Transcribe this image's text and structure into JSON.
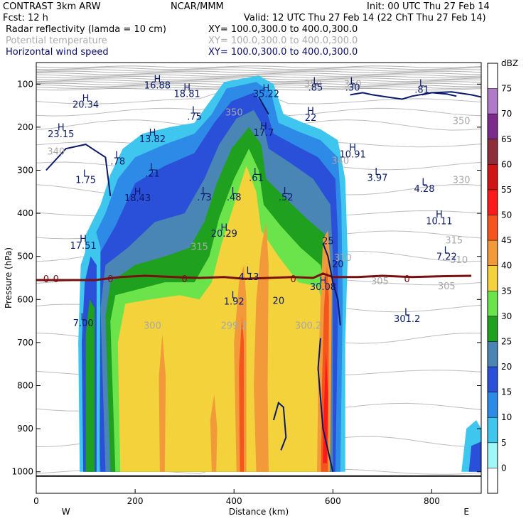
{
  "header": {
    "line1_left": "CONTRAST  3km ARW",
    "line1_center": "NCAR/MMM",
    "line1_right": "Init: 00 UTC Thu 27 Feb 14",
    "line2_left": "Fcst:     12 h",
    "line2_right": "Valid: 12 UTC Thu 27 Feb 14 (22 ChT Thu 27 Feb 14)",
    "field1": "Radar reflectivity (lamda = 10 cm)",
    "field1_xy": "XY= 100.0,300.0 to 400.0,300.0",
    "field2": "Potential temperature",
    "field2_xy": "XY= 100.0,300.0 to 400.0,300.0",
    "field3": "Horizontal wind speed",
    "field3_xy": "XY= 100.0,300.0 to 400.0,300.0"
  },
  "chart_data": {
    "type": "cross-section",
    "xlabel": "Distance (km)",
    "ylabel": "Pressure (hPa)",
    "x_ticks": [
      "0",
      "200",
      "400",
      "600",
      "800"
    ],
    "x_tick_values": [
      0,
      200,
      400,
      600,
      800
    ],
    "y_ticks": [
      "100",
      "200",
      "300",
      "400",
      "500",
      "600",
      "700",
      "800",
      "900",
      "1000"
    ],
    "y_tick_values": [
      100,
      200,
      300,
      400,
      500,
      600,
      700,
      800,
      900,
      1000
    ],
    "xlim": [
      0,
      900
    ],
    "ylim": [
      1050,
      50
    ],
    "west_label": "W",
    "east_label": "E",
    "colorbar": {
      "unit": "dBZ",
      "labels": [
        "0",
        "5",
        "10",
        "15",
        "20",
        "25",
        "30",
        "35",
        "40",
        "45",
        "50",
        "55",
        "60",
        "65",
        "70",
        "75"
      ],
      "colors": [
        "#ffffff",
        "#9ff7f7",
        "#3fc6ee",
        "#2d8ae6",
        "#2a4fd8",
        "#4a86b5",
        "#1fa01f",
        "#6ae44a",
        "#f3d23c",
        "#f29a3a",
        "#f5551c",
        "#ff1a1a",
        "#d01515",
        "#8e2e3a",
        "#7c2a8c",
        "#b07ac8",
        "#ffffff"
      ]
    },
    "freezing_level": {
      "label": "0",
      "color": "#7a0f0f",
      "points": [
        [
          0,
          555
        ],
        [
          80,
          555
        ],
        [
          120,
          555
        ],
        [
          140,
          552
        ],
        [
          170,
          548
        ],
        [
          220,
          545
        ],
        [
          280,
          548
        ],
        [
          330,
          550
        ],
        [
          380,
          548
        ],
        [
          420,
          552
        ],
        [
          470,
          550
        ],
        [
          520,
          548
        ],
        [
          560,
          550
        ],
        [
          580,
          540
        ],
        [
          600,
          548
        ],
        [
          650,
          548
        ],
        [
          700,
          545
        ],
        [
          760,
          548
        ],
        [
          820,
          546
        ],
        [
          880,
          545
        ]
      ],
      "labels_x": [
        20,
        40,
        150,
        300,
        520,
        750
      ]
    },
    "reflectivity_columns": [
      {
        "x0": 85,
        "x1": 130,
        "top": 420,
        "tops": [
          [
            85,
            520
          ],
          [
            110,
            440
          ],
          [
            130,
            460
          ]
        ],
        "bands": [
          [
            0,
            2
          ],
          [
            1,
            1
          ]
        ]
      },
      {
        "x0": 130,
        "x1": 625,
        "outline": [
          [
            130,
            430
          ],
          [
            150,
            330
          ],
          [
            170,
            260
          ],
          [
            200,
            230
          ],
          [
            260,
            215
          ],
          [
            320,
            200
          ],
          [
            350,
            160
          ],
          [
            390,
            100
          ],
          [
            440,
            90
          ],
          [
            470,
            110
          ],
          [
            490,
            180
          ],
          [
            520,
            200
          ],
          [
            560,
            210
          ],
          [
            600,
            240
          ],
          [
            625,
            330
          ]
        ]
      }
    ],
    "annotations": [
      {
        "text": "H",
        "x": 245,
        "y": 95
      },
      {
        "text": "16.88",
        "x": 245,
        "y": 110
      },
      {
        "text": "H",
        "x": 305,
        "y": 115
      },
      {
        "text": "18.81",
        "x": 305,
        "y": 130
      },
      {
        "text": "H",
        "x": 100,
        "y": 140
      },
      {
        "text": "20.34",
        "x": 100,
        "y": 155
      },
      {
        "text": "H",
        "x": 465,
        "y": 117
      },
      {
        "text": "35.22",
        "x": 465,
        "y": 130
      },
      {
        "text": "L",
        "x": 565,
        "y": 100
      },
      {
        "text": ".85",
        "x": 565,
        "y": 115
      },
      {
        "text": "L",
        "x": 640,
        "y": 100
      },
      {
        "text": ".30",
        "x": 640,
        "y": 115
      },
      {
        "text": "L",
        "x": 780,
        "y": 105
      },
      {
        "text": ".81",
        "x": 780,
        "y": 120
      },
      {
        "text": "L",
        "x": 320,
        "y": 168
      },
      {
        "text": ".75",
        "x": 320,
        "y": 183
      },
      {
        "text": "H",
        "x": 555,
        "y": 170
      },
      {
        "text": "22",
        "x": 555,
        "y": 185
      },
      {
        "text": "H",
        "x": 50,
        "y": 208
      },
      {
        "text": "23.15",
        "x": 50,
        "y": 223
      },
      {
        "text": "H",
        "x": 235,
        "y": 220
      },
      {
        "text": "13.82",
        "x": 235,
        "y": 235
      },
      {
        "text": "H",
        "x": 460,
        "y": 205
      },
      {
        "text": "17.7",
        "x": 460,
        "y": 220
      },
      {
        "text": "H",
        "x": 640,
        "y": 255
      },
      {
        "text": "10.91",
        "x": 640,
        "y": 270
      },
      {
        "text": "L",
        "x": 165,
        "y": 272
      },
      {
        "text": ".78",
        "x": 165,
        "y": 287
      },
      {
        "text": "L",
        "x": 235,
        "y": 300
      },
      {
        "text": ".21",
        "x": 235,
        "y": 315
      },
      {
        "text": "L",
        "x": 100,
        "y": 315
      },
      {
        "text": "1.75",
        "x": 100,
        "y": 330
      },
      {
        "text": "L",
        "x": 445,
        "y": 311
      },
      {
        "text": ".61",
        "x": 445,
        "y": 325
      },
      {
        "text": "L",
        "x": 690,
        "y": 311
      },
      {
        "text": "3.97",
        "x": 690,
        "y": 325
      },
      {
        "text": "L",
        "x": 785,
        "y": 335
      },
      {
        "text": "4.28",
        "x": 785,
        "y": 350
      },
      {
        "text": "H",
        "x": 205,
        "y": 357
      },
      {
        "text": "18.43",
        "x": 205,
        "y": 372
      },
      {
        "text": "L",
        "x": 340,
        "y": 355
      },
      {
        "text": ".73",
        "x": 340,
        "y": 370
      },
      {
        "text": "L",
        "x": 400,
        "y": 355
      },
      {
        "text": ".48",
        "x": 400,
        "y": 370
      },
      {
        "text": "L",
        "x": 505,
        "y": 355
      },
      {
        "text": ".52",
        "x": 505,
        "y": 370
      },
      {
        "text": "H",
        "x": 815,
        "y": 410
      },
      {
        "text": "10.11",
        "x": 815,
        "y": 425
      },
      {
        "text": "H",
        "x": 380,
        "y": 440
      },
      {
        "text": "20.29",
        "x": 380,
        "y": 454
      },
      {
        "text": "H",
        "x": 95,
        "y": 467
      },
      {
        "text": "17.51",
        "x": 95,
        "y": 482
      },
      {
        "text": "25",
        "x": 590,
        "y": 472
      },
      {
        "text": "L",
        "x": 830,
        "y": 493
      },
      {
        "text": "7.22",
        "x": 830,
        "y": 508
      },
      {
        "text": "20",
        "x": 610,
        "y": 525
      },
      {
        "text": "L",
        "x": 430,
        "y": 540
      },
      {
        "text": "4.13",
        "x": 430,
        "y": 555
      },
      {
        "text": "H",
        "x": 580,
        "y": 563
      },
      {
        "text": "30.08",
        "x": 580,
        "y": 578
      },
      {
        "text": "20",
        "x": 490,
        "y": 610
      },
      {
        "text": "L",
        "x": 400,
        "y": 597
      },
      {
        "text": "1.92",
        "x": 400,
        "y": 612
      },
      {
        "text": "L",
        "x": 750,
        "y": 637
      },
      {
        "text": "301.2",
        "x": 750,
        "y": 652
      },
      {
        "text": "L",
        "x": 95,
        "y": 648
      },
      {
        "text": "7.00",
        "x": 95,
        "y": 662
      }
    ],
    "wind_contours": [
      {
        "label": "20",
        "points": [
          [
            635,
            125
          ],
          [
            660,
            120
          ],
          [
            680,
            125
          ],
          [
            710,
            130
          ],
          [
            740,
            135
          ],
          [
            760,
            128
          ],
          [
            800,
            120
          ],
          [
            840,
            118
          ],
          [
            880,
            125
          ],
          [
            900,
            130
          ]
        ]
      },
      {
        "label": "25",
        "points": [
          [
            780,
            125
          ],
          [
            800,
            120
          ],
          [
            830,
            123
          ],
          [
            850,
            128
          ]
        ]
      }
    ],
    "theta_labels": [
      {
        "text": "350",
        "x": 860,
        "y": 193
      },
      {
        "text": "340",
        "x": 40,
        "y": 264
      },
      {
        "text": "340",
        "x": 615,
        "y": 285
      },
      {
        "text": "330",
        "x": 860,
        "y": 330
      },
      {
        "text": "315",
        "x": 330,
        "y": 485
      },
      {
        "text": "315",
        "x": 845,
        "y": 470
      },
      {
        "text": "310",
        "x": 620,
        "y": 510
      },
      {
        "text": "310",
        "x": 855,
        "y": 515
      },
      {
        "text": "305",
        "x": 695,
        "y": 565
      },
      {
        "text": "305",
        "x": 830,
        "y": 576
      },
      {
        "text": "300",
        "x": 235,
        "y": 668
      },
      {
        "text": "299.2",
        "x": 400,
        "y": 668
      },
      {
        "text": "300.2",
        "x": 550,
        "y": 668
      },
      {
        "text": "350",
        "x": 400,
        "y": 173
      },
      {
        "text": "350",
        "x": 560,
        "y": 107
      },
      {
        "text": "350",
        "x": 640,
        "y": 107
      }
    ]
  }
}
